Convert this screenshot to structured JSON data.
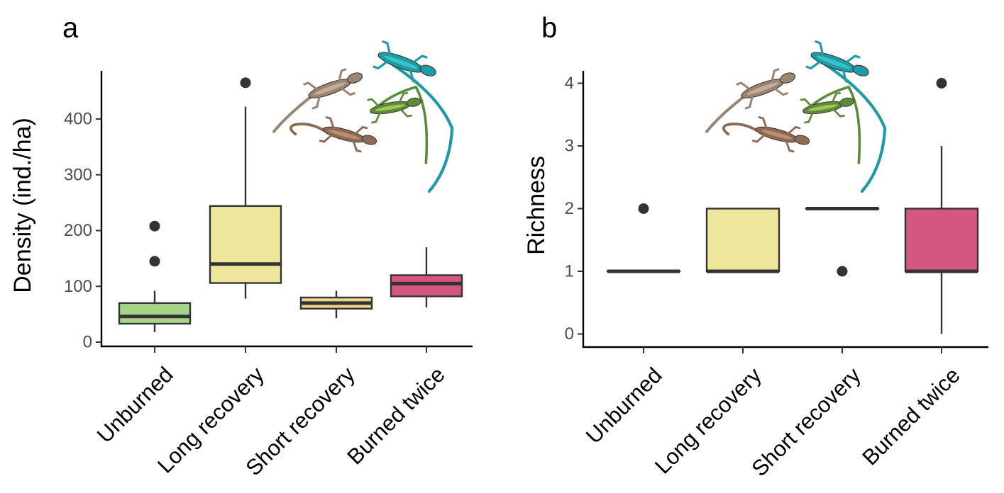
{
  "chart_data": [
    {
      "type": "boxplot",
      "panel_label": "a",
      "ylabel": "Density (ind./ha)",
      "xlabel": "",
      "categories": [
        "Unburned",
        "Long recovery",
        "Short recovery",
        "Burned twice"
      ],
      "ylim": [
        0,
        480
      ],
      "yticks": [
        0,
        100,
        200,
        300,
        400
      ],
      "boxes": [
        {
          "category": "Unburned",
          "color": "#A6D58A",
          "whisker_low": 18,
          "q1": 33,
          "median": 46,
          "q3": 70,
          "whisker_high": 92,
          "outliers": [
            145,
            208
          ]
        },
        {
          "category": "Long recovery",
          "color": "#EEE69A",
          "whisker_low": 78,
          "q1": 106,
          "median": 140,
          "q3": 244,
          "whisker_high": 422,
          "outliers": [
            465
          ]
        },
        {
          "category": "Short recovery",
          "color": "#F1D28A",
          "whisker_low": 43,
          "q1": 60,
          "median": 70,
          "q3": 80,
          "whisker_high": 92,
          "outliers": []
        },
        {
          "category": "Burned twice",
          "color": "#D4577F",
          "whisker_low": 62,
          "q1": 82,
          "median": 105,
          "q3": 120,
          "whisker_high": 170,
          "outliers": []
        }
      ],
      "grid": false,
      "legend": "none"
    },
    {
      "type": "boxplot",
      "panel_label": "b",
      "ylabel": "Richness",
      "xlabel": "",
      "categories": [
        "Unburned",
        "Long recovery",
        "Short recovery",
        "Burned twice"
      ],
      "ylim": [
        0,
        4.2
      ],
      "yticks": [
        0,
        1,
        2,
        3,
        4
      ],
      "boxes": [
        {
          "category": "Unburned",
          "color": "#A6D58A",
          "whisker_low": 1,
          "q1": 1,
          "median": 1,
          "q3": 1,
          "whisker_high": 1,
          "outliers": [
            2
          ]
        },
        {
          "category": "Long recovery",
          "color": "#EEE69A",
          "whisker_low": 1,
          "q1": 1,
          "median": 1,
          "q3": 2,
          "whisker_high": 2,
          "outliers": []
        },
        {
          "category": "Short recovery",
          "color": "#F1D28A",
          "whisker_low": 2,
          "q1": 2,
          "median": 2,
          "q3": 2,
          "whisker_high": 2,
          "outliers": [
            1
          ]
        },
        {
          "category": "Burned twice",
          "color": "#D4577F",
          "whisker_low": 0,
          "q1": 1,
          "median": 1,
          "q3": 2,
          "whisker_high": 3,
          "outliers": [
            4
          ]
        }
      ],
      "grid": false,
      "legend": "none"
    }
  ]
}
